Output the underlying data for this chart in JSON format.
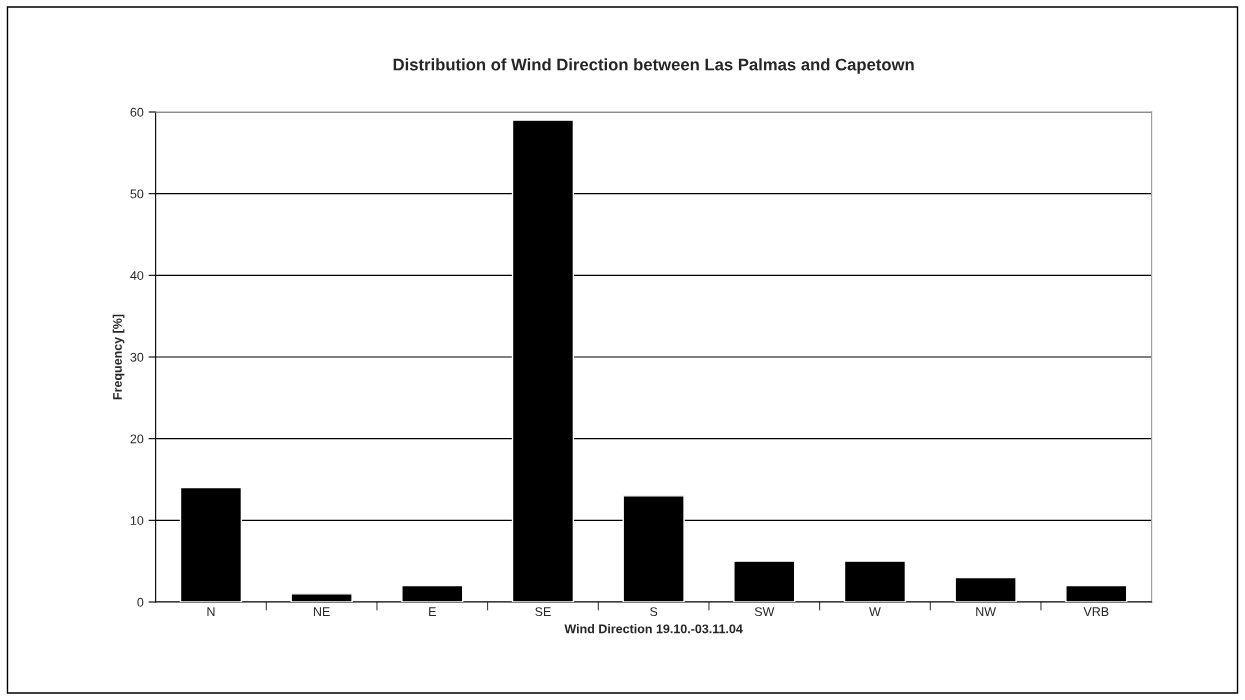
{
  "chart_data": {
    "type": "bar",
    "title": "Distribution of Wind Direction between Las Palmas and Capetown",
    "xlabel": "Wind Direction 19.10.-03.11.04",
    "ylabel": "Frequency [%]",
    "categories": [
      "N",
      "NE",
      "E",
      "SE",
      "S",
      "SW",
      "W",
      "NW",
      "VRB"
    ],
    "values": [
      14,
      1,
      2,
      59,
      13,
      5,
      5,
      3,
      2
    ],
    "color": "#000000",
    "ylim": [
      0,
      60
    ],
    "yticks": [
      0,
      10,
      20,
      30,
      40,
      50,
      60
    ],
    "grid": "y"
  }
}
